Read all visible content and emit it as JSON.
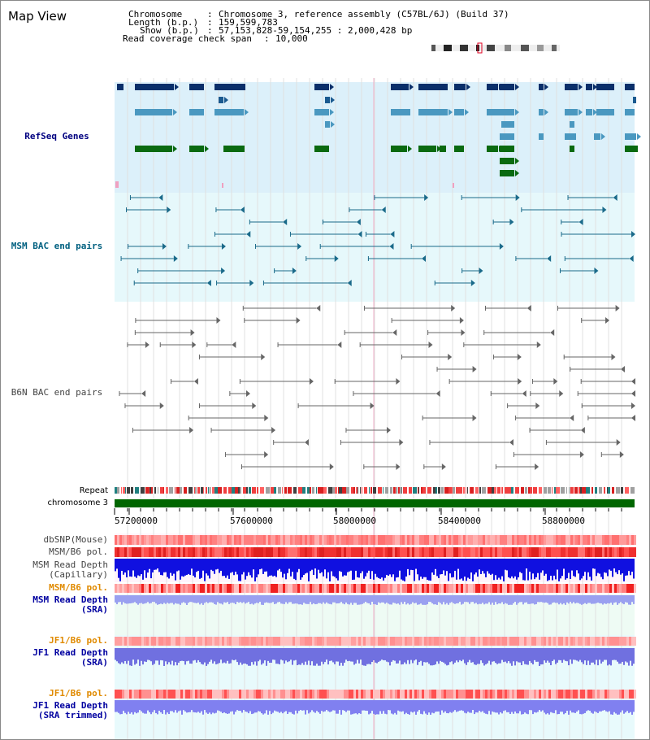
{
  "title": "Map View",
  "header": {
    "chromosome_key": "Chromosome",
    "chromosome_value": "Chromosome 3, reference assembly (C57BL/6J) (Build 37)",
    "length_key": "Length (b.p.)",
    "length_value": "159,599,783",
    "show_key": "Show (b.p.)",
    "show_value": "57,153,828-59,154,255 : 2,000,428 bp",
    "coverage_key": "Read coverage check span",
    "coverage_value": "10,000"
  },
  "tracks": {
    "refseq": "RefSeq Genes",
    "msm_bac": "MSM BAC end pairs",
    "b6n_bac": "B6N BAC end pairs",
    "repeat": "Repeat",
    "chromosome": "chromosome 3",
    "dbsnp": "dbSNP(Mouse)",
    "msm_b6_pol_1": "MSM/B6 pol.",
    "msm_read_depth_cap_1": "MSM Read Depth",
    "msm_read_depth_cap_2": "(Capillary)",
    "msm_b6_pol_2": "MSM/B6 pol.",
    "msm_read_depth_sra_1": "MSM Read Depth",
    "msm_read_depth_sra_2": "(SRA)",
    "jf1_b6_pol_1": "JF1/B6 pol.",
    "jf1_read_depth_sra_1": "JF1 Read Depth",
    "jf1_read_depth_sra_2": "(SRA)",
    "jf1_b6_pol_2": "JF1/B6 pol.",
    "jf1_read_depth_trim_1": "JF1 Read Depth",
    "jf1_read_depth_trim_2": "(SRA trimmed)"
  },
  "axis_ticks": [
    "57200000",
    "57600000",
    "58000000",
    "58400000",
    "58800000"
  ],
  "colors": {
    "refseq_label": "#000080",
    "msm_label": "#006080",
    "b6n_label": "#444444",
    "pol_label_orange": "#e08a00",
    "depth_label_blue": "#0000a0",
    "refseq_bg": "#dcf0fa",
    "msm_bg": "#e6f8fb",
    "chromosome_bar": "#006600"
  }
}
